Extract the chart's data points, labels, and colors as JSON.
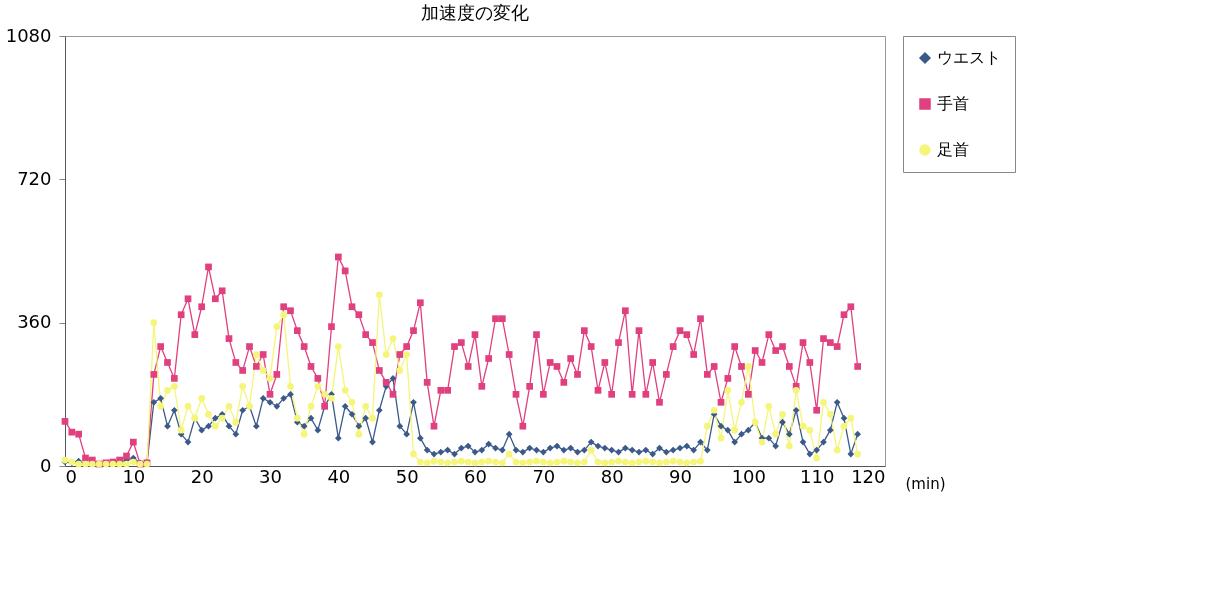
{
  "chart_data": {
    "type": "line",
    "title": "加速度の変化",
    "xlabel": "(min)",
    "x": [
      0,
      1,
      2,
      3,
      4,
      5,
      6,
      7,
      8,
      9,
      10,
      11,
      12,
      13,
      14,
      15,
      16,
      17,
      18,
      19,
      20,
      21,
      22,
      23,
      24,
      25,
      26,
      27,
      28,
      29,
      30,
      31,
      32,
      33,
      34,
      35,
      36,
      37,
      38,
      39,
      40,
      41,
      42,
      43,
      44,
      45,
      46,
      47,
      48,
      49,
      50,
      51,
      52,
      53,
      54,
      55,
      56,
      57,
      58,
      59,
      60,
      61,
      62,
      63,
      64,
      65,
      66,
      67,
      68,
      69,
      70,
      71,
      72,
      73,
      74,
      75,
      76,
      77,
      78,
      79,
      80,
      81,
      82,
      83,
      84,
      85,
      86,
      87,
      88,
      89,
      90,
      91,
      92,
      93,
      94,
      95,
      96,
      97,
      98,
      99,
      100,
      101,
      102,
      103,
      104,
      105,
      106,
      107,
      108,
      109,
      110,
      111,
      112,
      113,
      114,
      115,
      116
    ],
    "series": [
      {
        "name": "ウエスト",
        "color": "#3b5a8a",
        "marker": "diamond",
        "values": [
          10,
          8,
          12,
          5,
          6,
          5,
          5,
          8,
          10,
          15,
          20,
          8,
          8,
          160,
          170,
          100,
          140,
          80,
          60,
          120,
          90,
          100,
          120,
          130,
          100,
          80,
          140,
          150,
          100,
          170,
          160,
          150,
          170,
          180,
          110,
          100,
          120,
          90,
          150,
          180,
          70,
          150,
          130,
          100,
          120,
          60,
          140,
          200,
          220,
          100,
          80,
          160,
          70,
          40,
          30,
          35,
          40,
          30,
          45,
          50,
          35,
          40,
          55,
          45,
          40,
          80,
          40,
          35,
          45,
          40,
          35,
          45,
          50,
          40,
          45,
          35,
          40,
          60,
          50,
          45,
          40,
          35,
          45,
          40,
          35,
          40,
          30,
          45,
          35,
          40,
          45,
          50,
          40,
          60,
          40,
          130,
          100,
          90,
          60,
          80,
          90,
          110,
          70,
          70,
          50,
          110,
          80,
          140,
          60,
          30,
          40,
          60,
          90,
          160,
          120,
          30,
          80
        ]
      },
      {
        "name": "手首",
        "color": "#e0407f",
        "marker": "square",
        "values": [
          112,
          85,
          80,
          20,
          15,
          5,
          8,
          10,
          15,
          25,
          60,
          5,
          8,
          230,
          300,
          260,
          220,
          380,
          420,
          330,
          400,
          500,
          420,
          440,
          320,
          260,
          240,
          300,
          250,
          280,
          180,
          230,
          400,
          390,
          340,
          300,
          250,
          220,
          150,
          350,
          525,
          490,
          400,
          380,
          330,
          310,
          240,
          210,
          180,
          280,
          300,
          340,
          410,
          210,
          100,
          190,
          190,
          300,
          310,
          250,
          330,
          200,
          270,
          370,
          370,
          280,
          180,
          100,
          200,
          330,
          180,
          260,
          250,
          210,
          270,
          230,
          340,
          300,
          190,
          260,
          180,
          310,
          390,
          180,
          340,
          180,
          260,
          160,
          230,
          300,
          340,
          330,
          280,
          370,
          230,
          250,
          160,
          220,
          300,
          250,
          180,
          290,
          260,
          330,
          290,
          300,
          250,
          200,
          310,
          260,
          140,
          320,
          310,
          300,
          380,
          400,
          250
        ]
      },
      {
        "name": "足首",
        "color": "#f5f57a",
        "marker": "circle",
        "values": [
          15,
          10,
          5,
          5,
          5,
          5,
          5,
          5,
          5,
          5,
          10,
          5,
          5,
          360,
          150,
          190,
          200,
          90,
          150,
          120,
          170,
          130,
          100,
          120,
          150,
          110,
          200,
          150,
          280,
          240,
          220,
          350,
          380,
          200,
          120,
          80,
          150,
          200,
          180,
          170,
          300,
          190,
          160,
          80,
          150,
          120,
          430,
          280,
          320,
          240,
          280,
          30,
          10,
          8,
          12,
          10,
          8,
          10,
          12,
          10,
          8,
          10,
          12,
          10,
          8,
          30,
          10,
          8,
          10,
          12,
          10,
          8,
          10,
          12,
          10,
          8,
          10,
          40,
          10,
          8,
          10,
          12,
          10,
          8,
          10,
          12,
          10,
          8,
          10,
          12,
          10,
          8,
          10,
          12,
          100,
          140,
          70,
          190,
          90,
          160,
          250,
          110,
          60,
          150,
          80,
          130,
          50,
          190,
          100,
          90,
          20,
          160,
          130,
          40,
          100,
          120,
          30
        ]
      }
    ],
    "xlim": [
      0,
      120
    ],
    "xticks": [
      0,
      10,
      20,
      30,
      40,
      50,
      60,
      70,
      80,
      90,
      100,
      110,
      120
    ],
    "ylim": [
      0,
      1080
    ],
    "yticks": [
      0,
      360,
      720,
      1080
    ],
    "grid": false,
    "legend": "right",
    "line_style": "solid"
  }
}
